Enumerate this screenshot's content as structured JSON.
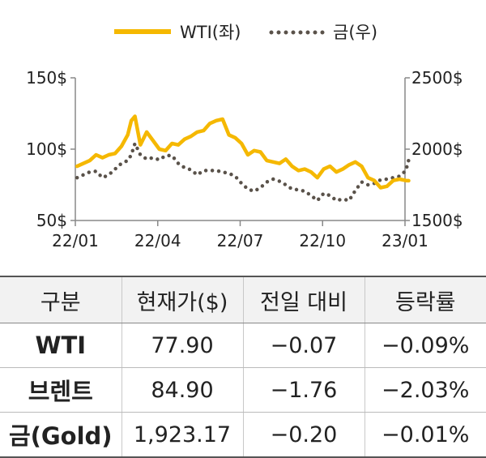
{
  "chart_data": {
    "type": "line",
    "legend": {
      "placement": "top-center"
    },
    "grid": false,
    "x_ticks": [
      "22/01",
      "22/04",
      "22/07",
      "22/10",
      "23/01"
    ],
    "left_axis": {
      "ylim": [
        50,
        150
      ],
      "ticks": [
        "150$",
        "100$",
        "50$"
      ]
    },
    "right_axis": {
      "ylim": [
        1500,
        2500
      ],
      "ticks": [
        "2500$",
        "2000$",
        "1500$"
      ]
    },
    "series": [
      {
        "name": "WTI(좌)",
        "axis": "left",
        "color": "#f5b800",
        "style": "solid",
        "points": [
          [
            "2022-01-03",
            88
          ],
          [
            "2022-01-10",
            90
          ],
          [
            "2022-01-17",
            92
          ],
          [
            "2022-01-24",
            96
          ],
          [
            "2022-01-31",
            94
          ],
          [
            "2022-02-07",
            96
          ],
          [
            "2022-02-14",
            97
          ],
          [
            "2022-02-21",
            102
          ],
          [
            "2022-02-28",
            110
          ],
          [
            "2022-03-04",
            120
          ],
          [
            "2022-03-08",
            123
          ],
          [
            "2022-03-14",
            103
          ],
          [
            "2022-03-21",
            112
          ],
          [
            "2022-03-28",
            106
          ],
          [
            "2022-04-04",
            100
          ],
          [
            "2022-04-11",
            99
          ],
          [
            "2022-04-18",
            104
          ],
          [
            "2022-04-25",
            103
          ],
          [
            "2022-05-02",
            107
          ],
          [
            "2022-05-09",
            109
          ],
          [
            "2022-05-16",
            112
          ],
          [
            "2022-05-23",
            113
          ],
          [
            "2022-05-30",
            118
          ],
          [
            "2022-06-06",
            120
          ],
          [
            "2022-06-13",
            121
          ],
          [
            "2022-06-20",
            110
          ],
          [
            "2022-06-27",
            108
          ],
          [
            "2022-07-04",
            104
          ],
          [
            "2022-07-11",
            96
          ],
          [
            "2022-07-18",
            99
          ],
          [
            "2022-07-25",
            98
          ],
          [
            "2022-08-01",
            92
          ],
          [
            "2022-08-08",
            91
          ],
          [
            "2022-08-15",
            90
          ],
          [
            "2022-08-22",
            93
          ],
          [
            "2022-08-29",
            88
          ],
          [
            "2022-09-05",
            85
          ],
          [
            "2022-09-12",
            86
          ],
          [
            "2022-09-19",
            84
          ],
          [
            "2022-09-26",
            80
          ],
          [
            "2022-10-03",
            86
          ],
          [
            "2022-10-10",
            88
          ],
          [
            "2022-10-17",
            84
          ],
          [
            "2022-10-24",
            86
          ],
          [
            "2022-10-31",
            89
          ],
          [
            "2022-11-07",
            91
          ],
          [
            "2022-11-14",
            88
          ],
          [
            "2022-11-21",
            80
          ],
          [
            "2022-11-28",
            78
          ],
          [
            "2022-12-05",
            73
          ],
          [
            "2022-12-12",
            74
          ],
          [
            "2022-12-19",
            78
          ],
          [
            "2022-12-26",
            79
          ],
          [
            "2023-01-02",
            78
          ],
          [
            "2023-01-05",
            77.9
          ]
        ]
      },
      {
        "name": "금(우)",
        "axis": "right",
        "color": "#5a524a",
        "style": "dotted",
        "points": [
          [
            "2022-01-03",
            1800
          ],
          [
            "2022-01-10",
            1820
          ],
          [
            "2022-01-17",
            1840
          ],
          [
            "2022-01-24",
            1845
          ],
          [
            "2022-01-31",
            1800
          ],
          [
            "2022-02-07",
            1820
          ],
          [
            "2022-02-14",
            1860
          ],
          [
            "2022-02-21",
            1900
          ],
          [
            "2022-02-28",
            1920
          ],
          [
            "2022-03-04",
            1960
          ],
          [
            "2022-03-08",
            2040
          ],
          [
            "2022-03-14",
            1960
          ],
          [
            "2022-03-21",
            1930
          ],
          [
            "2022-03-28",
            1940
          ],
          [
            "2022-04-04",
            1925
          ],
          [
            "2022-04-11",
            1955
          ],
          [
            "2022-04-18",
            1955
          ],
          [
            "2022-04-25",
            1900
          ],
          [
            "2022-05-02",
            1870
          ],
          [
            "2022-05-09",
            1855
          ],
          [
            "2022-05-16",
            1820
          ],
          [
            "2022-05-23",
            1850
          ],
          [
            "2022-05-30",
            1850
          ],
          [
            "2022-06-06",
            1850
          ],
          [
            "2022-06-13",
            1840
          ],
          [
            "2022-06-20",
            1830
          ],
          [
            "2022-06-27",
            1810
          ],
          [
            "2022-07-04",
            1760
          ],
          [
            "2022-07-11",
            1720
          ],
          [
            "2022-07-18",
            1705
          ],
          [
            "2022-07-25",
            1730
          ],
          [
            "2022-08-01",
            1770
          ],
          [
            "2022-08-08",
            1790
          ],
          [
            "2022-08-15",
            1775
          ],
          [
            "2022-08-22",
            1750
          ],
          [
            "2022-08-29",
            1720
          ],
          [
            "2022-09-05",
            1715
          ],
          [
            "2022-09-12",
            1705
          ],
          [
            "2022-09-19",
            1675
          ],
          [
            "2022-09-26",
            1640
          ],
          [
            "2022-10-03",
            1690
          ],
          [
            "2022-10-10",
            1675
          ],
          [
            "2022-10-17",
            1640
          ],
          [
            "2022-10-24",
            1650
          ],
          [
            "2022-10-31",
            1640
          ],
          [
            "2022-11-07",
            1710
          ],
          [
            "2022-11-14",
            1770
          ],
          [
            "2022-11-21",
            1750
          ],
          [
            "2022-11-28",
            1760
          ],
          [
            "2022-12-05",
            1785
          ],
          [
            "2022-12-12",
            1790
          ],
          [
            "2022-12-19",
            1800
          ],
          [
            "2022-12-26",
            1810
          ],
          [
            "2023-01-02",
            1850
          ],
          [
            "2023-01-05",
            1923.17
          ]
        ]
      }
    ]
  },
  "table": {
    "headers": [
      "구분",
      "현재가($)",
      "전일 대비",
      "등락률"
    ],
    "rows": [
      [
        "WTI",
        "77.90",
        "−0.07",
        "−0.09%"
      ],
      [
        "브렌트",
        "84.90",
        "−1.76",
        "−2.03%"
      ],
      [
        "금(Gold)",
        "1,923.17",
        "−0.20",
        "−0.01%"
      ]
    ]
  }
}
